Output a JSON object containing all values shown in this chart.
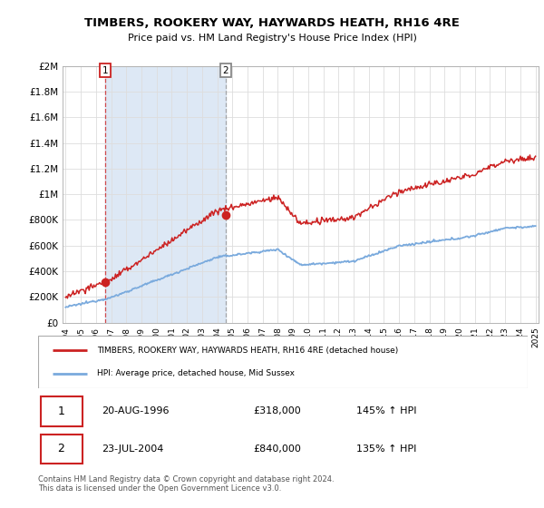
{
  "title": "TIMBERS, ROOKERY WAY, HAYWARDS HEATH, RH16 4RE",
  "subtitle": "Price paid vs. HM Land Registry's House Price Index (HPI)",
  "ylim": [
    0,
    2000000
  ],
  "yticks": [
    0,
    200000,
    400000,
    600000,
    800000,
    1000000,
    1200000,
    1400000,
    1600000,
    1800000,
    2000000
  ],
  "ytick_labels": [
    "£0",
    "£200K",
    "£400K",
    "£600K",
    "£800K",
    "£1M",
    "£1.2M",
    "£1.4M",
    "£1.6M",
    "£1.8M",
    "£2M"
  ],
  "xlim_start": 1993.8,
  "xlim_end": 2025.2,
  "xtick_years": [
    1994,
    1995,
    1996,
    1997,
    1998,
    1999,
    2000,
    2001,
    2002,
    2003,
    2004,
    2005,
    2006,
    2007,
    2008,
    2009,
    2010,
    2011,
    2012,
    2013,
    2014,
    2015,
    2016,
    2017,
    2018,
    2019,
    2020,
    2021,
    2022,
    2023,
    2024,
    2025
  ],
  "property_color": "#cc2222",
  "hpi_color": "#7aaadd",
  "plot_bg_color": "#ffffff",
  "grid_color": "#dddddd",
  "shade_color": "#dde8f5",
  "sale1_x": 1996.63,
  "sale1_y": 318000,
  "sale2_x": 2004.55,
  "sale2_y": 840000,
  "sale1_date": "20-AUG-1996",
  "sale1_price": "£318,000",
  "sale1_hpi": "145% ↑ HPI",
  "sale2_date": "23-JUL-2004",
  "sale2_price": "£840,000",
  "sale2_hpi": "135% ↑ HPI",
  "legend_property": "TIMBERS, ROOKERY WAY, HAYWARDS HEATH, RH16 4RE (detached house)",
  "legend_hpi": "HPI: Average price, detached house, Mid Sussex",
  "footer": "Contains HM Land Registry data © Crown copyright and database right 2024.\nThis data is licensed under the Open Government Licence v3.0."
}
